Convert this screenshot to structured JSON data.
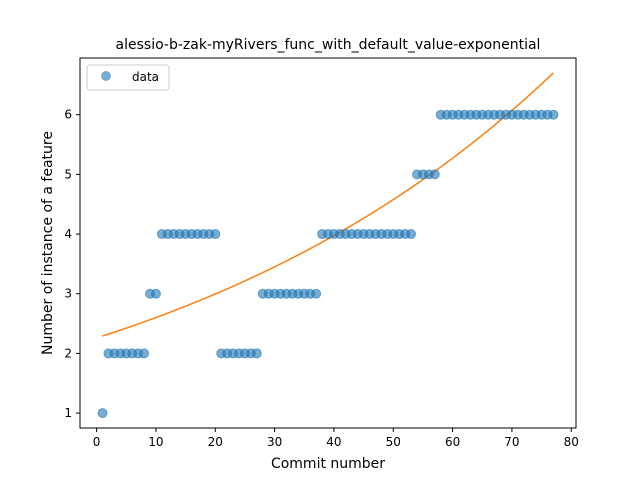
{
  "chart_data": {
    "type": "scatter",
    "title": "alessio-b-zak-myRivers_func_with_default_value-exponential",
    "xlabel": "Commit number",
    "ylabel": "Number of instance of a feature",
    "xlim": [
      -2.8,
      80.8
    ],
    "ylim": [
      0.75,
      6.95
    ],
    "xticks": [
      0,
      10,
      20,
      30,
      40,
      50,
      60,
      70,
      80
    ],
    "yticks": [
      1,
      2,
      3,
      4,
      5,
      6
    ],
    "legend": {
      "placement": "upper-left",
      "entries": [
        "data"
      ]
    },
    "colors": {
      "points": "#1f77b4",
      "fit": "#ff7f0e"
    },
    "series": [
      {
        "name": "data",
        "x": [
          1,
          2,
          3,
          4,
          5,
          6,
          7,
          8,
          9,
          10,
          11,
          12,
          13,
          14,
          15,
          16,
          17,
          18,
          19,
          20,
          21,
          22,
          23,
          24,
          25,
          26,
          27,
          28,
          29,
          30,
          31,
          32,
          33,
          34,
          35,
          36,
          37,
          38,
          39,
          40,
          41,
          42,
          43,
          44,
          45,
          46,
          47,
          48,
          49,
          50,
          51,
          52,
          53,
          54,
          55,
          56,
          57,
          58,
          59,
          60,
          61,
          62,
          63,
          64,
          65,
          66,
          67,
          68,
          69,
          70,
          71,
          72,
          73,
          74,
          75,
          76,
          77
        ],
        "y": [
          1,
          2,
          2,
          2,
          2,
          2,
          2,
          2,
          3,
          3,
          4,
          4,
          4,
          4,
          4,
          4,
          4,
          4,
          4,
          4,
          2,
          2,
          2,
          2,
          2,
          2,
          2,
          3,
          3,
          3,
          3,
          3,
          3,
          3,
          3,
          3,
          3,
          4,
          4,
          4,
          4,
          4,
          4,
          4,
          4,
          4,
          4,
          4,
          4,
          4,
          4,
          4,
          4,
          5,
          5,
          5,
          5,
          6,
          6,
          6,
          6,
          6,
          6,
          6,
          6,
          6,
          6,
          6,
          6,
          6,
          6,
          6,
          6,
          6,
          6,
          6,
          6
        ]
      }
    ],
    "fit": {
      "a": 2.258,
      "b": 0.01413,
      "x_range": [
        1,
        77
      ]
    }
  }
}
